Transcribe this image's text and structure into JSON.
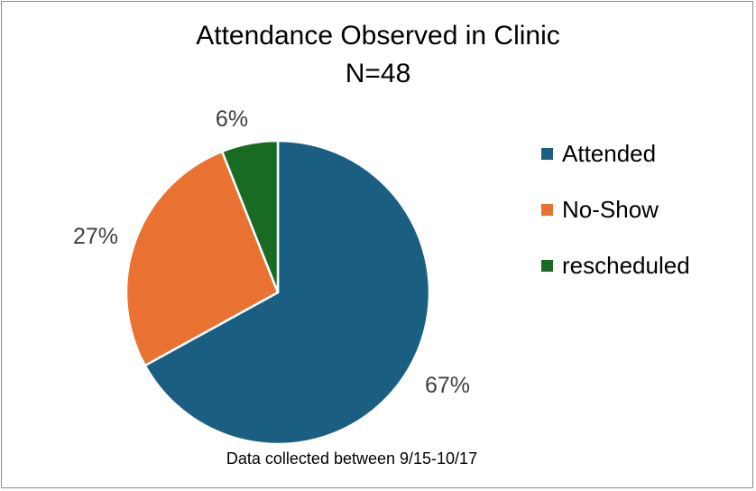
{
  "chart_data": {
    "type": "pie",
    "title": "Attendance Observed in Clinic",
    "subtitle": "N=48",
    "categories": [
      "Attended",
      "No-Show",
      "rescheduled"
    ],
    "values": [
      67,
      27,
      6
    ],
    "data_labels": [
      "67%",
      "27%",
      "6%"
    ],
    "colors": [
      "#1a5e82",
      "#e97132",
      "#196b24"
    ],
    "legend_position": "right",
    "footnote": "Data collected between 9/15-10/17"
  }
}
